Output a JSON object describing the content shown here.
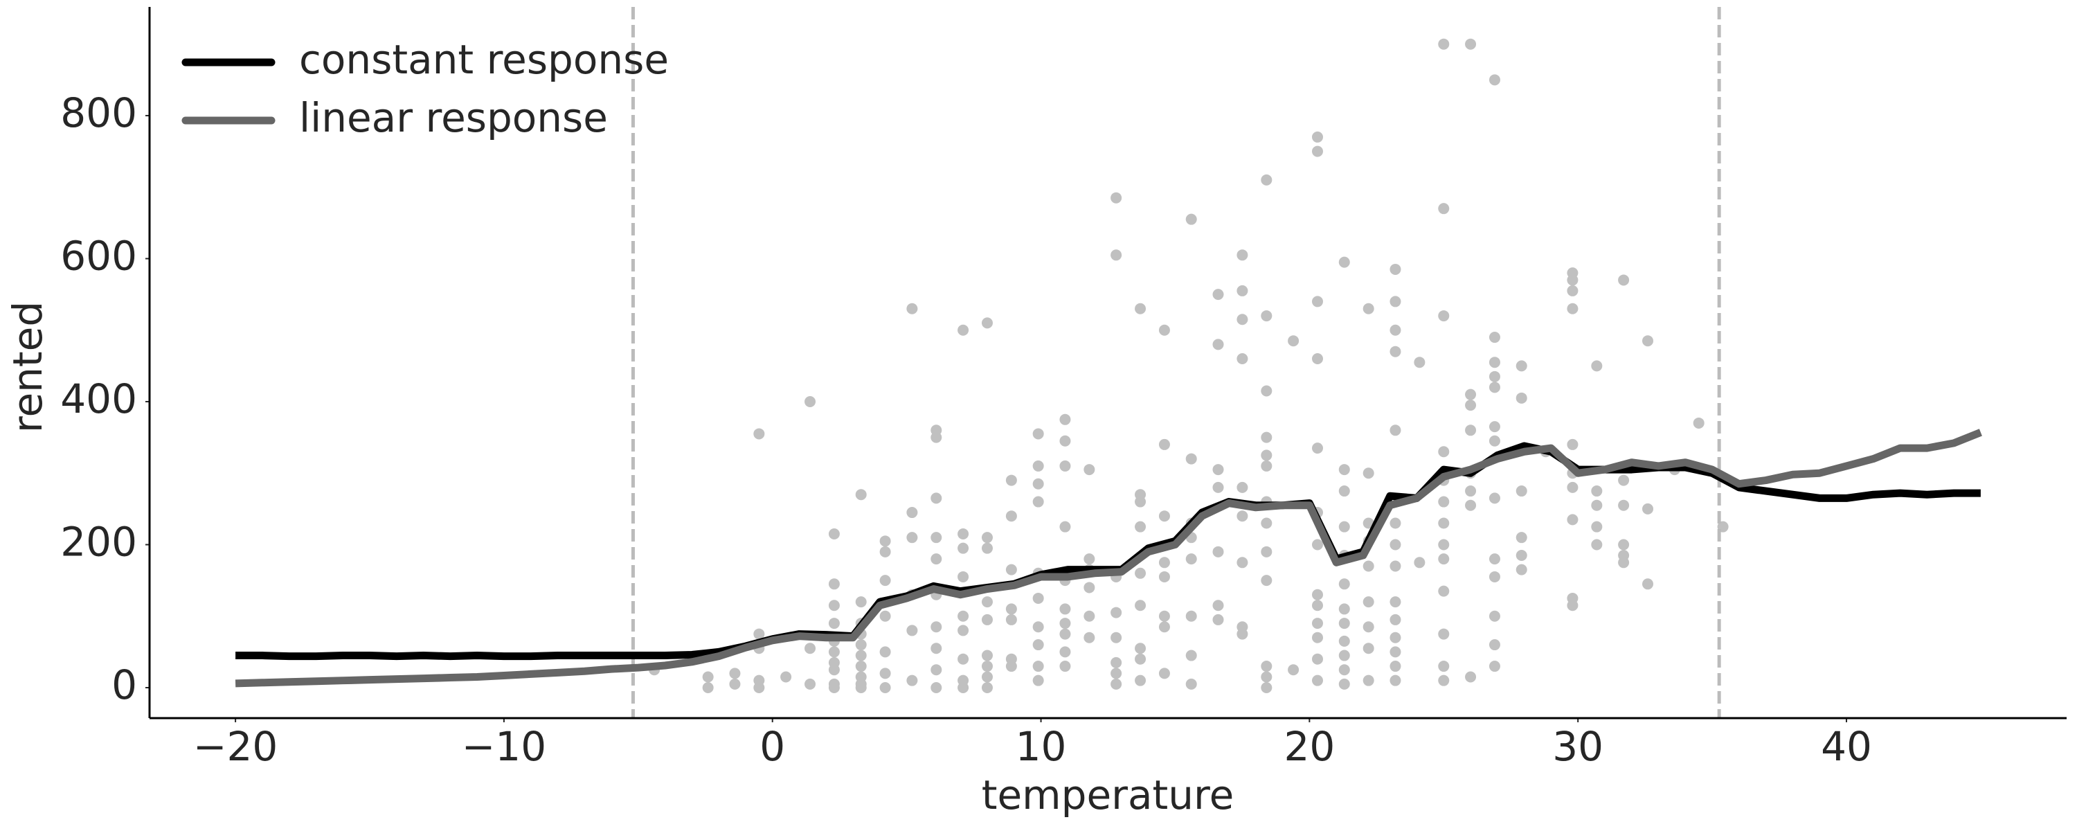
{
  "chart_data": {
    "type": "line",
    "x_label": "temperature",
    "y_label": "rented",
    "xlim": [
      -23.2,
      48.2
    ],
    "ylim": [
      -42.6,
      952
    ],
    "xticks": [
      {
        "value": -20,
        "label": "−20"
      },
      {
        "value": -10,
        "label": "−10"
      },
      0,
      10,
      20,
      30,
      40
    ],
    "yticks": [
      0,
      200,
      400,
      600,
      800
    ],
    "legend": "upper left",
    "vlines": {
      "values": [
        -5.19,
        35.26
      ],
      "color": "#bbbbbb"
    },
    "x": [
      -20,
      -19,
      -18,
      -17,
      -16,
      -15,
      -14,
      -13,
      -12,
      -11,
      -10,
      -9,
      -8,
      -7,
      -6,
      -5,
      -4,
      -3,
      -2,
      -1,
      0,
      1,
      2,
      3,
      4,
      5,
      6,
      7,
      8,
      9,
      10,
      11,
      12,
      13,
      14,
      15,
      16,
      17,
      18,
      19,
      20,
      21,
      22,
      23,
      24,
      25,
      26,
      27,
      28,
      29,
      30,
      31,
      32,
      33,
      34,
      35,
      36,
      37,
      38,
      39,
      40,
      41,
      42,
      43,
      44,
      45
    ],
    "series": [
      {
        "name": "constant response",
        "color": "#000000",
        "values": [
          45,
          45,
          44,
          44,
          45,
          45,
          44,
          45,
          44,
          45,
          44,
          44,
          45,
          45,
          45,
          45,
          45,
          46,
          50,
          58,
          68,
          75,
          74,
          72,
          120,
          128,
          142,
          135,
          140,
          145,
          158,
          165,
          165,
          165,
          195,
          205,
          245,
          260,
          255,
          255,
          258,
          180,
          190,
          268,
          265,
          305,
          300,
          325,
          338,
          330,
          305,
          305,
          305,
          308,
          308,
          300,
          280,
          275,
          270,
          265,
          265,
          270,
          272,
          270,
          272,
          272
        ]
      },
      {
        "name": "linear response",
        "color": "#666666",
        "values": [
          6,
          7,
          8,
          9,
          10,
          11,
          12,
          13,
          14,
          15,
          17,
          19,
          21,
          23,
          26,
          28,
          31,
          36,
          44,
          56,
          66,
          72,
          70,
          70,
          115,
          125,
          138,
          130,
          138,
          143,
          155,
          155,
          160,
          162,
          190,
          200,
          240,
          258,
          252,
          255,
          255,
          175,
          185,
          255,
          265,
          295,
          305,
          320,
          330,
          335,
          300,
          305,
          315,
          310,
          315,
          305,
          285,
          290,
          298,
          300,
          310,
          320,
          335,
          335,
          342,
          357
        ]
      }
    ],
    "points": {
      "color": "#c0c0c0",
      "groups": [
        {
          "x": -4.4,
          "values": [
            25
          ]
        },
        {
          "x": -2.4,
          "values": [
            0,
            15
          ]
        },
        {
          "x": -1.4,
          "values": [
            5,
            20
          ]
        },
        {
          "x": -0.5,
          "values": [
            355,
            0,
            10,
            55,
            75
          ]
        },
        {
          "x": 0.5,
          "values": [
            15
          ]
        },
        {
          "x": 1.4,
          "values": [
            400,
            5,
            55
          ]
        },
        {
          "x": 2.3,
          "values": [
            215,
            145,
            115,
            90,
            65,
            50,
            25,
            5,
            0,
            35
          ]
        },
        {
          "x": 3.3,
          "values": [
            270,
            120,
            90,
            75,
            60,
            45,
            30,
            15,
            5,
            0
          ]
        },
        {
          "x": 4.2,
          "values": [
            205,
            190,
            150,
            100,
            50,
            20,
            0
          ]
        },
        {
          "x": 5.2,
          "values": [
            530,
            245,
            210,
            130,
            80,
            10
          ]
        },
        {
          "x": 6.1,
          "values": [
            360,
            350,
            265,
            210,
            180,
            130,
            85,
            55,
            25,
            0
          ]
        },
        {
          "x": 7.1,
          "values": [
            500,
            215,
            195,
            155,
            100,
            80,
            40,
            10,
            0
          ]
        },
        {
          "x": 8.0,
          "values": [
            510,
            210,
            195,
            120,
            95,
            45,
            30,
            15,
            0
          ]
        },
        {
          "x": 8.9,
          "values": [
            290,
            240,
            165,
            110,
            95,
            40,
            30
          ]
        },
        {
          "x": 9.9,
          "values": [
            355,
            310,
            285,
            260,
            160,
            125,
            85,
            60,
            30,
            10
          ]
        },
        {
          "x": 10.9,
          "values": [
            375,
            345,
            310,
            225,
            150,
            110,
            90,
            75,
            50,
            30
          ]
        },
        {
          "x": 11.8,
          "values": [
            305,
            180,
            165,
            140,
            100,
            70
          ]
        },
        {
          "x": 12.8,
          "values": [
            685,
            605,
            155,
            105,
            70,
            35,
            20,
            5
          ]
        },
        {
          "x": 13.7,
          "values": [
            530,
            270,
            260,
            225,
            160,
            115,
            55,
            40,
            10
          ]
        },
        {
          "x": 14.6,
          "values": [
            500,
            340,
            240,
            175,
            155,
            100,
            85,
            20
          ]
        },
        {
          "x": 15.6,
          "values": [
            655,
            320,
            230,
            210,
            180,
            100,
            45,
            5
          ]
        },
        {
          "x": 16.6,
          "values": [
            550,
            480,
            305,
            280,
            190,
            115,
            95
          ]
        },
        {
          "x": 17.5,
          "values": [
            605,
            555,
            515,
            460,
            280,
            240,
            175,
            85,
            75
          ]
        },
        {
          "x": 18.4,
          "values": [
            710,
            520,
            415,
            350,
            325,
            310,
            260,
            230,
            190,
            150,
            30,
            15,
            0
          ]
        },
        {
          "x": 19.4,
          "values": [
            485,
            25
          ]
        },
        {
          "x": 20.3,
          "values": [
            770,
            750,
            540,
            460,
            335,
            245,
            200,
            130,
            115,
            90,
            70,
            40,
            10
          ]
        },
        {
          "x": 21.3,
          "values": [
            595,
            305,
            275,
            225,
            185,
            145,
            110,
            90,
            65,
            45,
            25,
            5
          ]
        },
        {
          "x": 22.2,
          "values": [
            530,
            300,
            230,
            205,
            170,
            120,
            85,
            55,
            10
          ]
        },
        {
          "x": 23.2,
          "values": [
            585,
            540,
            500,
            470,
            360,
            230,
            200,
            170,
            120,
            95,
            70,
            50,
            30,
            10
          ]
        },
        {
          "x": 24.1,
          "values": [
            455,
            175
          ]
        },
        {
          "x": 25.0,
          "values": [
            900,
            670,
            520,
            330,
            290,
            260,
            230,
            200,
            180,
            135,
            75,
            30,
            10
          ]
        },
        {
          "x": 26.0,
          "values": [
            900,
            410,
            395,
            360,
            300,
            275,
            255,
            15
          ]
        },
        {
          "x": 26.9,
          "values": [
            850,
            490,
            455,
            435,
            420,
            365,
            345,
            265,
            180,
            155,
            100,
            60,
            30
          ]
        },
        {
          "x": 27.9,
          "values": [
            450,
            405,
            275,
            210,
            185,
            165
          ]
        },
        {
          "x": 28.8,
          "values": [
            330
          ]
        },
        {
          "x": 29.8,
          "values": [
            580,
            570,
            555,
            530,
            340,
            300,
            280,
            235,
            125,
            115
          ]
        },
        {
          "x": 30.7,
          "values": [
            450,
            275,
            255,
            225,
            200
          ]
        },
        {
          "x": 31.7,
          "values": [
            570,
            290,
            255,
            200,
            185,
            175
          ]
        },
        {
          "x": 32.6,
          "values": [
            485,
            250,
            145
          ]
        },
        {
          "x": 33.6,
          "values": [
            305
          ]
        },
        {
          "x": 34.5,
          "values": [
            370
          ]
        },
        {
          "x": 35.4,
          "values": [
            225
          ]
        }
      ]
    }
  }
}
